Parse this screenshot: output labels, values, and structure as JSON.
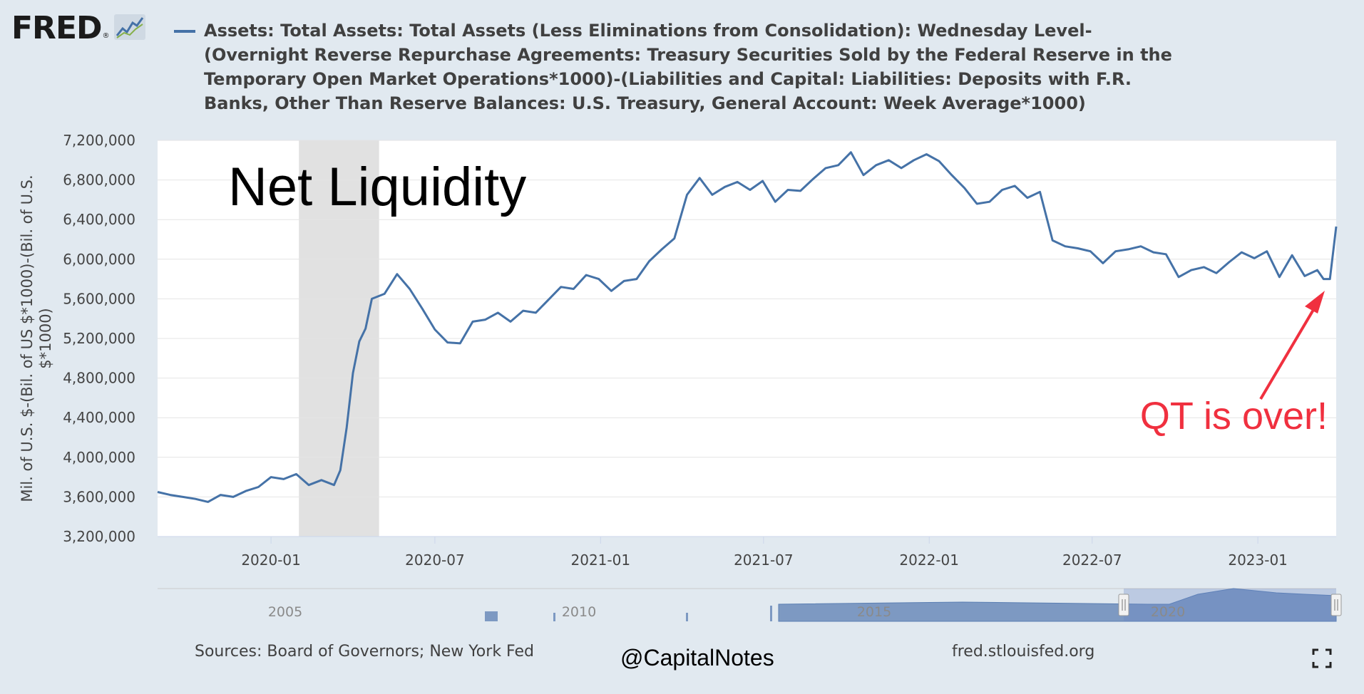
{
  "header": {
    "logo_text": "FRED",
    "logo_reg": "®",
    "legend_text": "Assets: Total Assets: Total Assets (Less Eliminations from Consolidation): Wednesday Level-(Overnight Reverse Repurchase Agreements: Treasury Securities Sold by the Federal Reserve in the Temporary Open Market Operations*1000)-(Liabilities and Capital: Liabilities: Deposits with F.R. Banks, Other Than Reserve Balances: U.S. Treasury, General Account: Week Average*1000)",
    "series_color": "#4572a7"
  },
  "annotations": {
    "title": "Net Liquidity",
    "qt_text": "QT is over!",
    "qt_color": "#f0303f"
  },
  "footer": {
    "sources": "Sources: Board of Governors; New York Fed",
    "handle": "@CapitalNotes",
    "site": "fred.stlouisfed.org",
    "fullscreen_icon": "fullscreen-icon"
  },
  "navigator": {
    "years": [
      "2005",
      "2010",
      "2015",
      "2020"
    ]
  },
  "chart_data": {
    "type": "line",
    "ylabel": "Mil. of U.S. $-(Bil. of US $*1000)-(Bil. of U.S. $*1000)",
    "ylim": [
      3200000,
      7200000
    ],
    "yticks": [
      "3,200,000",
      "3,600,000",
      "4,000,000",
      "4,400,000",
      "4,800,000",
      "5,200,000",
      "5,600,000",
      "6,000,000",
      "6,400,000",
      "6,800,000",
      "7,200,000"
    ],
    "xlim": [
      "2019-08-28",
      "2023-03-29"
    ],
    "xticks": [
      "2020-01",
      "2020-07",
      "2021-01",
      "2021-07",
      "2022-01",
      "2022-07",
      "2023-01"
    ],
    "recession": [
      "2020-02-01",
      "2020-04-30"
    ],
    "grid": true,
    "legend": "top",
    "series": [
      {
        "color": "#4572a7",
        "x": [
          "2019-08-28",
          "2019-09-11",
          "2019-09-25",
          "2019-10-09",
          "2019-10-23",
          "2019-11-06",
          "2019-11-20",
          "2019-12-04",
          "2019-12-18",
          "2020-01-01",
          "2020-01-15",
          "2020-01-29",
          "2020-02-12",
          "2020-02-26",
          "2020-03-11",
          "2020-03-18",
          "2020-03-25",
          "2020-04-01",
          "2020-04-08",
          "2020-04-15",
          "2020-04-22",
          "2020-05-06",
          "2020-05-20",
          "2020-06-03",
          "2020-06-17",
          "2020-07-01",
          "2020-07-15",
          "2020-07-29",
          "2020-08-12",
          "2020-08-26",
          "2020-09-09",
          "2020-09-23",
          "2020-10-07",
          "2020-10-21",
          "2020-11-04",
          "2020-11-18",
          "2020-12-02",
          "2020-12-16",
          "2020-12-30",
          "2021-01-13",
          "2021-01-27",
          "2021-02-10",
          "2021-02-24",
          "2021-03-10",
          "2021-03-24",
          "2021-04-07",
          "2021-04-21",
          "2021-05-05",
          "2021-05-19",
          "2021-06-02",
          "2021-06-16",
          "2021-06-30",
          "2021-07-14",
          "2021-07-28",
          "2021-08-11",
          "2021-08-25",
          "2021-09-08",
          "2021-09-22",
          "2021-10-06",
          "2021-10-20",
          "2021-11-03",
          "2021-11-17",
          "2021-12-01",
          "2021-12-15",
          "2021-12-29",
          "2022-01-12",
          "2022-01-26",
          "2022-02-09",
          "2022-02-23",
          "2022-03-09",
          "2022-03-23",
          "2022-04-06",
          "2022-04-20",
          "2022-05-04",
          "2022-05-18",
          "2022-06-01",
          "2022-06-15",
          "2022-06-29",
          "2022-07-13",
          "2022-07-27",
          "2022-08-10",
          "2022-08-24",
          "2022-09-07",
          "2022-09-21",
          "2022-10-05",
          "2022-10-19",
          "2022-11-02",
          "2022-11-16",
          "2022-11-30",
          "2022-12-14",
          "2022-12-28",
          "2023-01-11",
          "2023-01-25",
          "2023-02-08",
          "2023-02-22",
          "2023-03-08",
          "2023-03-15",
          "2023-03-22",
          "2023-03-29"
        ],
        "values": [
          3650000,
          3620000,
          3600000,
          3580000,
          3550000,
          3620000,
          3600000,
          3660000,
          3700000,
          3800000,
          3780000,
          3830000,
          3720000,
          3770000,
          3720000,
          3870000,
          4300000,
          4850000,
          5170000,
          5300000,
          5600000,
          5650000,
          5850000,
          5700000,
          5500000,
          5290000,
          5160000,
          5150000,
          5370000,
          5390000,
          5460000,
          5370000,
          5480000,
          5460000,
          5590000,
          5720000,
          5700000,
          5840000,
          5800000,
          5680000,
          5780000,
          5800000,
          5980000,
          6100000,
          6210000,
          6650000,
          6820000,
          6650000,
          6730000,
          6780000,
          6700000,
          6790000,
          6580000,
          6700000,
          6690000,
          6810000,
          6920000,
          6950000,
          7080000,
          6850000,
          6950000,
          7000000,
          6920000,
          7000000,
          7060000,
          6990000,
          6850000,
          6720000,
          6560000,
          6580000,
          6700000,
          6740000,
          6620000,
          6680000,
          6190000,
          6130000,
          6110000,
          6080000,
          5960000,
          6080000,
          6100000,
          6130000,
          6070000,
          6050000,
          5820000,
          5890000,
          5920000,
          5860000,
          5970000,
          6070000,
          6010000,
          6080000,
          5820000,
          6040000,
          5830000,
          5890000,
          5800000,
          5800000,
          6330000
        ]
      }
    ]
  }
}
